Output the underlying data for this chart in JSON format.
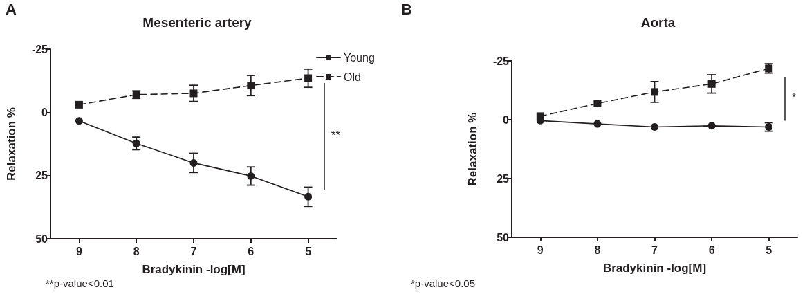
{
  "chart_data": [
    {
      "type": "line",
      "title": "Mesenteric artery",
      "xlabel": "Bradykinin -log[M]",
      "ylabel": "Relaxation %",
      "x": [
        9,
        8,
        7,
        6,
        5
      ],
      "xlim": [
        9.5,
        4.5
      ],
      "xticks": [
        9,
        8,
        7,
        6,
        5
      ],
      "ylim": [
        50,
        -25
      ],
      "yticks": [
        -25,
        0,
        25,
        50
      ],
      "grid": false,
      "legend": "top right",
      "annotations": [
        "A",
        "**",
        "**p-value<0.01"
      ],
      "series": [
        {
          "name": "Young",
          "color": "#231f20",
          "marker": "circle",
          "line_style": "solid",
          "values": [
            3.4,
            12.3,
            20,
            25.2,
            33.4
          ],
          "errors": [
            null,
            2.5,
            3.8,
            3.6,
            3.8
          ]
        },
        {
          "name": "Old",
          "color": "#231f20",
          "marker": "square",
          "line_style": "dashed",
          "values": [
            -3,
            -7,
            -7.5,
            -10.6,
            -13.5
          ],
          "errors": [
            null,
            1.5,
            3.2,
            4,
            3.6
          ]
        }
      ]
    },
    {
      "type": "line",
      "title": "Aorta",
      "xlabel": "Bradykinin -log[M]",
      "ylabel": "Relaxation %",
      "x": [
        9,
        8,
        7,
        6,
        5
      ],
      "xlim": [
        9.5,
        4.5
      ],
      "xticks": [
        9,
        8,
        7,
        6,
        5
      ],
      "ylim": [
        50,
        -25
      ],
      "yticks": [
        -25,
        0,
        25,
        50
      ],
      "grid": false,
      "legend": false,
      "annotations": [
        "B",
        "*",
        "*p-value<0.05"
      ],
      "series": [
        {
          "color": "#231f20",
          "marker": "circle",
          "line_style": "solid",
          "values": [
            0.4,
            1.8,
            3.1,
            2.6,
            3.1
          ],
          "errors": [
            null,
            null,
            null,
            null,
            1.8
          ]
        },
        {
          "color": "#231f20",
          "marker": "square",
          "line_style": "dashed",
          "values": [
            -1.5,
            -6.9,
            -11.8,
            -15.2,
            -21.8
          ],
          "errors": [
            null,
            null,
            4.4,
            3.9,
            2
          ]
        }
      ]
    }
  ]
}
